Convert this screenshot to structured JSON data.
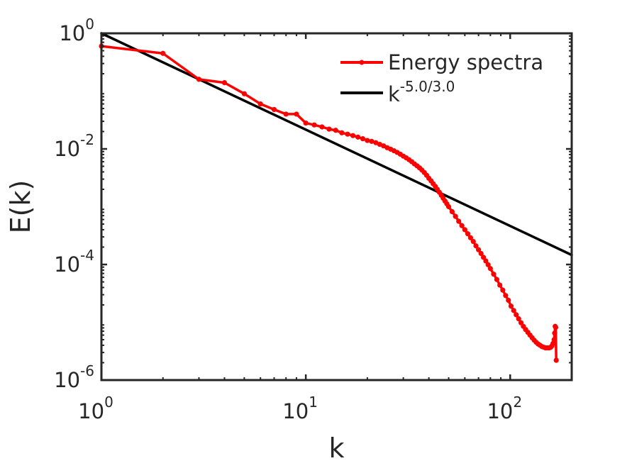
{
  "chart_data": {
    "type": "line",
    "xscale": "log",
    "yscale": "log",
    "title": "",
    "xlabel": "k",
    "ylabel": "E(k)",
    "xlim": [
      1,
      200
    ],
    "ylim": [
      1e-06,
      1
    ],
    "x_ticks": [
      {
        "value": 1,
        "base": "10",
        "exp": "0"
      },
      {
        "value": 10,
        "base": "10",
        "exp": "1"
      },
      {
        "value": 100,
        "base": "10",
        "exp": "2"
      }
    ],
    "y_ticks": [
      {
        "value": 1e-06,
        "base": "10",
        "exp": "-6"
      },
      {
        "value": 0.0001,
        "base": "10",
        "exp": "-4"
      },
      {
        "value": 0.01,
        "base": "10",
        "exp": "-2"
      },
      {
        "value": 1,
        "base": "10",
        "exp": "0"
      }
    ],
    "legend_position": "top-right",
    "series": [
      {
        "name": "Energy spectra",
        "color": "#ff0000",
        "marker": "circle",
        "x": [
          1,
          2,
          3,
          4,
          5,
          6,
          7,
          8,
          9,
          10,
          11,
          12,
          13,
          14,
          15,
          16,
          17,
          18,
          19,
          20,
          21,
          22,
          23,
          24,
          25,
          26,
          27,
          28,
          29,
          30,
          31,
          32,
          33,
          34,
          35,
          36,
          37,
          38,
          39,
          40,
          41,
          42,
          43,
          44,
          45,
          46,
          47,
          48,
          49,
          50,
          52,
          54,
          56,
          58,
          60,
          62,
          64,
          66,
          68,
          70,
          72,
          74,
          76,
          78,
          80,
          83,
          86,
          89,
          92,
          95,
          98,
          101,
          104,
          107,
          110,
          113,
          116,
          119,
          122,
          125,
          128,
          131,
          134,
          137,
          140,
          143,
          146,
          149,
          152,
          155,
          158,
          160,
          162,
          164,
          165,
          166,
          167,
          168
        ],
        "y": [
          0.6,
          0.45,
          0.16,
          0.14,
          0.09,
          0.06,
          0.048,
          0.04,
          0.04,
          0.028,
          0.026,
          0.024,
          0.022,
          0.021,
          0.019,
          0.018,
          0.017,
          0.016,
          0.015,
          0.014,
          0.0135,
          0.0128,
          0.012,
          0.0113,
          0.0105,
          0.0099,
          0.0093,
          0.0087,
          0.0081,
          0.0075,
          0.007,
          0.0065,
          0.006,
          0.0055,
          0.0051,
          0.0047,
          0.0043,
          0.0039,
          0.0035,
          0.0031,
          0.0028,
          0.0025,
          0.00225,
          0.002,
          0.00178,
          0.00158,
          0.0014,
          0.00125,
          0.00112,
          0.001,
          0.00082,
          0.00068,
          0.00056,
          0.00047,
          0.0004,
          0.00034,
          0.00029,
          0.00025,
          0.00021,
          0.00018,
          0.000155,
          0.000133,
          0.000115,
          9.9e-05,
          8.5e-05,
          6.8e-05,
          5.5e-05,
          4.4e-05,
          3.6e-05,
          2.9e-05,
          2.4e-05,
          1.9e-05,
          1.6e-05,
          1.35e-05,
          1.15e-05,
          9.8e-06,
          8.5e-06,
          7.5e-06,
          6.7e-06,
          6e-06,
          5.4e-06,
          4.9e-06,
          4.5e-06,
          4.2e-06,
          4e-06,
          3.8e-06,
          3.7e-06,
          3.6e-06,
          3.6e-06,
          3.6e-06,
          3.7e-06,
          3.9e-06,
          4.3e-06,
          5e-06,
          6.5e-06,
          8.5e-06,
          8.2e-06,
          2.2e-06
        ]
      },
      {
        "name": "k",
        "name_exp": "-5.0/3.0",
        "color": "#000000",
        "marker": "none",
        "x": [
          1,
          200
        ],
        "y": [
          1,
          0.000146
        ]
      }
    ]
  }
}
